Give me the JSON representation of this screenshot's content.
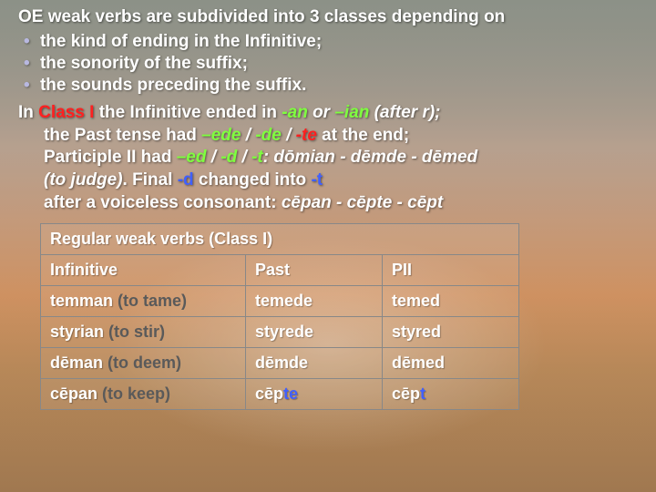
{
  "heading": "OE weak verbs are subdivided into 3 classes depending on",
  "bullets": [
    "the kind of ending in the Infinitive;",
    "the sonority of the suffix;",
    "the sounds preceding the suffix."
  ],
  "para": {
    "t1": "In ",
    "class1": "Class I",
    "t2": " the Infinitive ended in ",
    "an": "-an",
    "or": " or ",
    "ian": "–ian",
    "afterr": " (after r);",
    "line2a": "the Past tense had ",
    "ede": "–ede",
    "sep1": " / ",
    "de": "-de",
    "sep2": " / ",
    "te": "-te",
    "line2b": "   at the end;",
    "line3a": "Participle II had ",
    "ed": "–ed",
    "sep3": " / ",
    "d": "-d",
    "sep4": " / ",
    "t": "-t",
    "colon": ":  ",
    "domian": "dōmian - dēmde  - dēmed",
    "gloss1": " (to judge)",
    "line4a": ".   Final ",
    "dblue": "-d",
    "line4b": " changed into ",
    "tblue": "-t",
    "line5a": "after a voiceless consonant: ",
    "cepan": "cēpan - cēpte - cēpt"
  },
  "table": {
    "title": "Regular weak verbs (Class I)",
    "headers": {
      "inf": "Infinitive",
      "past": "Past",
      "pii": "PII"
    },
    "rows": [
      {
        "inf": "temman",
        "gloss": " (to tame)",
        "past": "temede",
        "pii": "temed",
        "past_t": "",
        "pii_t": ""
      },
      {
        "inf": "styrian",
        "gloss": " (to stir)",
        "past": "styrede",
        "pii": "styred",
        "past_t": "",
        "pii_t": ""
      },
      {
        "inf": "dēman",
        "gloss": " (to deem)",
        "past": "dēmde",
        "pii": "dēmed",
        "past_t": "",
        "pii_t": ""
      },
      {
        "inf": "cēpan",
        "gloss": " (to keep)",
        "past": "cēp",
        "pii": "cēp",
        "past_t": "te",
        "pii_t": "t"
      }
    ]
  }
}
